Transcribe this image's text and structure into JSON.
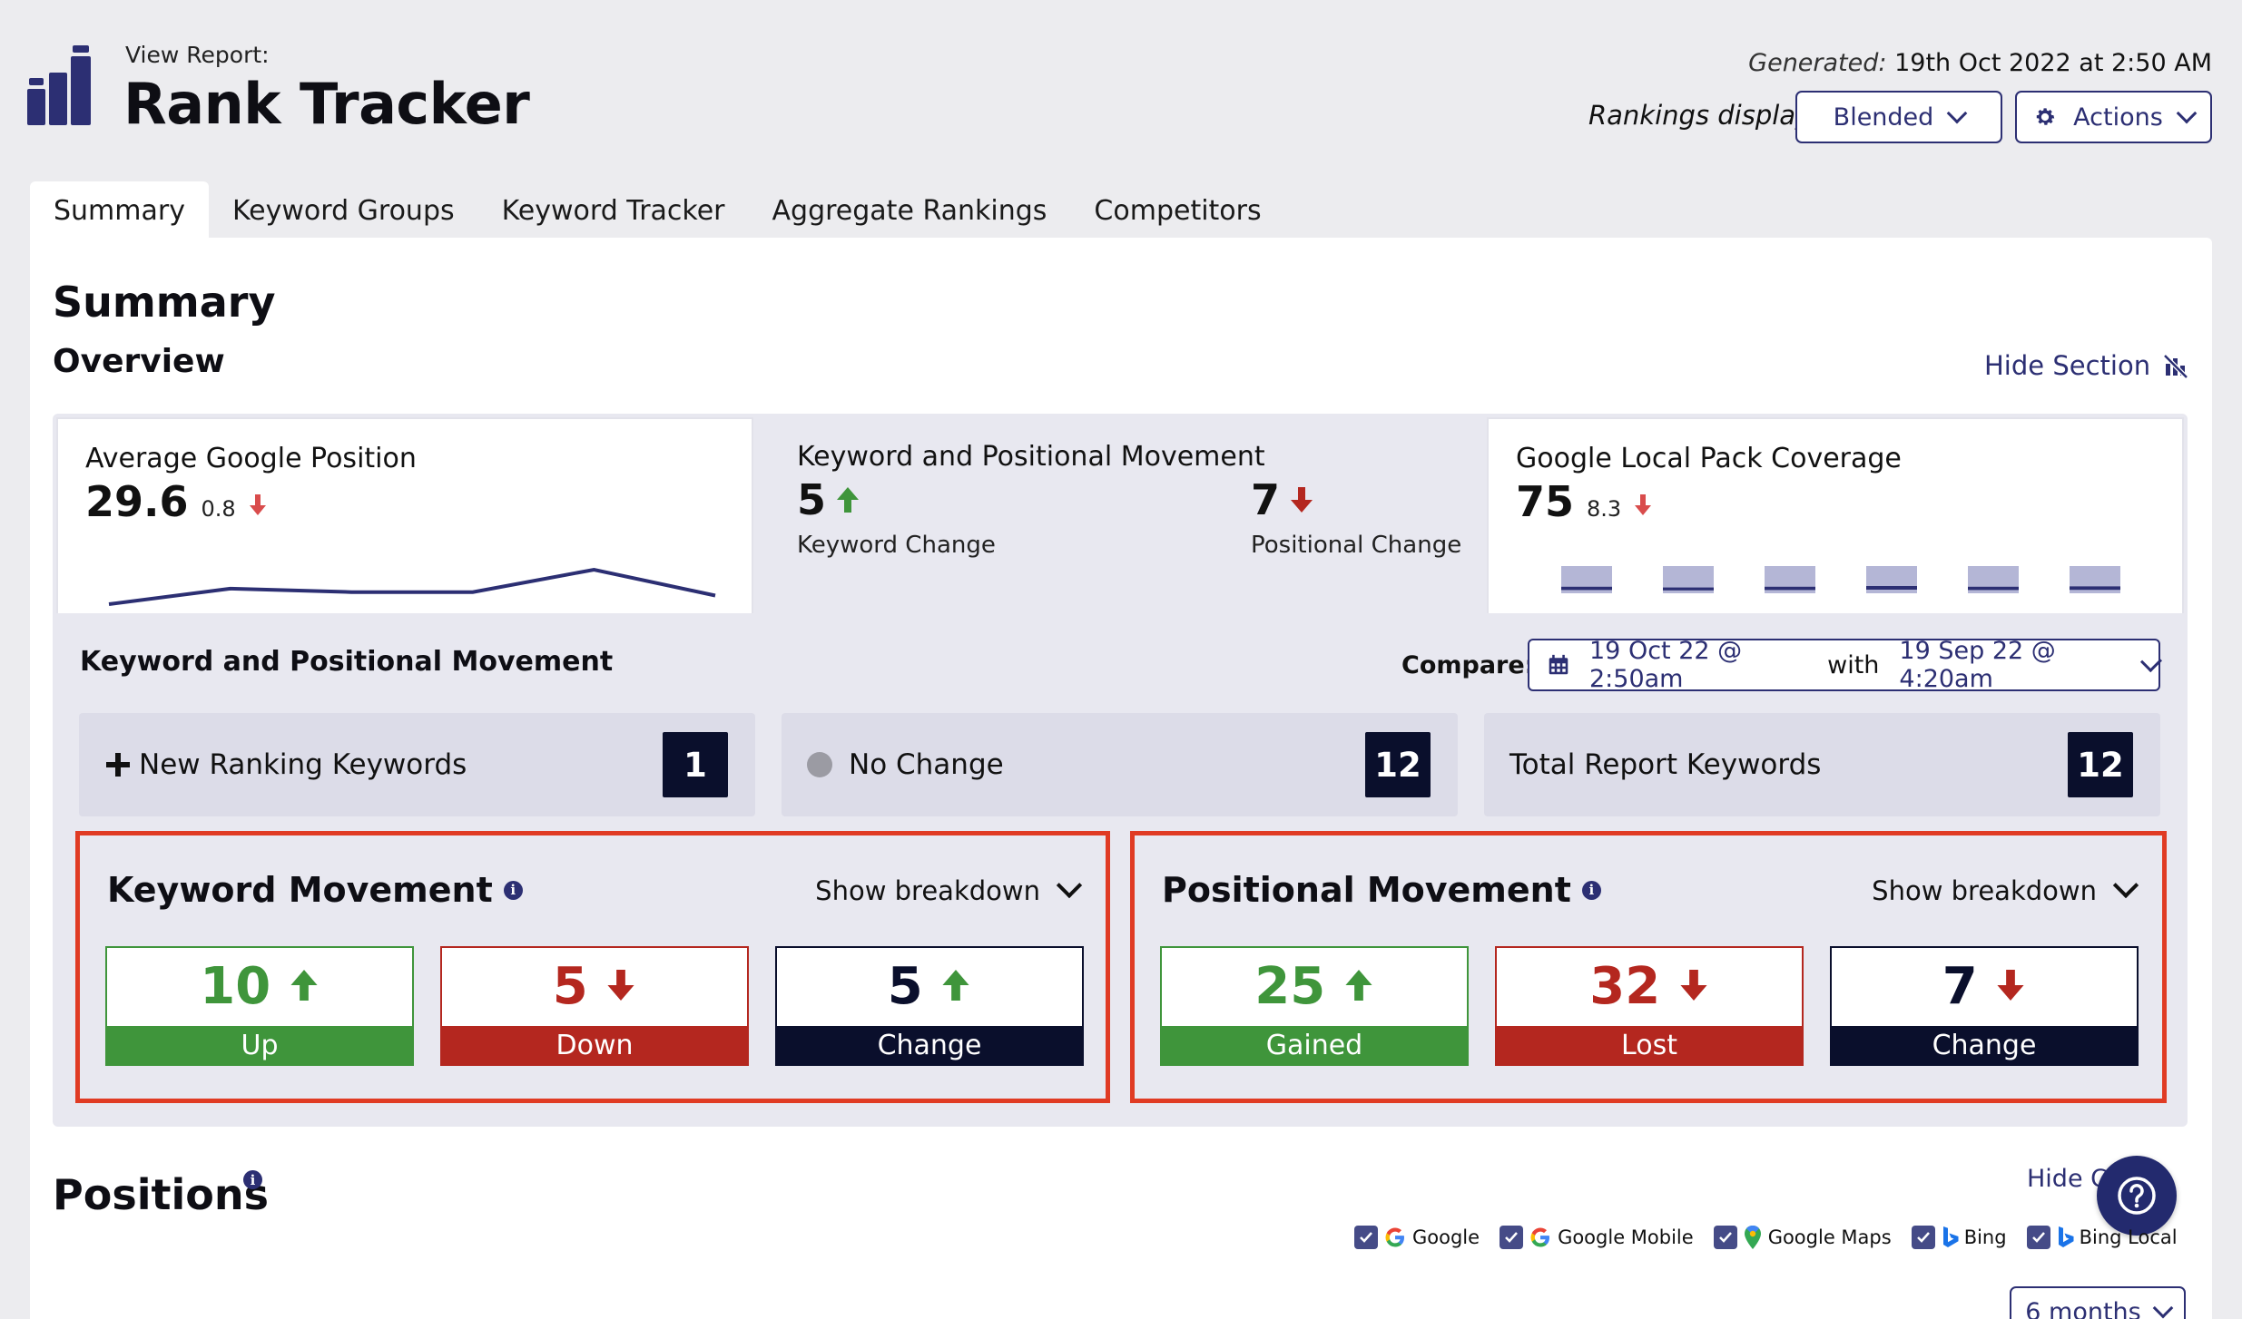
{
  "header": {
    "view_label": "View Report:",
    "title": "Rank Tracker",
    "generated_label": "Generated:",
    "generated_value": "19th Oct 2022 at 2:50 AM",
    "rankings_display_label": "Rankings display:",
    "rankings_display_value": "Blended",
    "actions_label": "Actions"
  },
  "tabs": [
    {
      "label": "Summary",
      "active": true
    },
    {
      "label": "Keyword Groups",
      "active": false
    },
    {
      "label": "Keyword Tracker",
      "active": false
    },
    {
      "label": "Aggregate Rankings",
      "active": false
    },
    {
      "label": "Competitors",
      "active": false
    }
  ],
  "summary": {
    "title": "Summary",
    "overview_title": "Overview",
    "hide_section": "Hide Section"
  },
  "overview_cards": {
    "avg_position": {
      "title": "Average Google Position",
      "value": "29.6",
      "change": "0.8",
      "trend": [
        3,
        7.5,
        6.5,
        6.5,
        13,
        5.5
      ]
    },
    "kpm": {
      "title": "Keyword and Positional Movement",
      "keyword_change_value": "5",
      "keyword_change_label": "Keyword Change",
      "positional_change_value": "7",
      "positional_change_label": "Positional Change"
    },
    "local_pack": {
      "title": "Google Local Pack Coverage",
      "value": "75",
      "change": "8.3",
      "bars": [
        0.8,
        0.6,
        0.8,
        1.0,
        0.8,
        0.9
      ]
    }
  },
  "movement": {
    "title": "Keyword and Positional Movement",
    "compare_label": "Compare:",
    "compare_from": "19 Oct 22 @ 2:50am",
    "compare_with": "with",
    "compare_to": "19 Sep 22 @ 4:20am",
    "stats": {
      "new_label": "New Ranking Keywords",
      "new_value": "1",
      "nochange_label": "No Change",
      "nochange_value": "12",
      "total_label": "Total Report Keywords",
      "total_value": "12"
    },
    "keyword_movement": {
      "title": "Keyword Movement",
      "breakdown": "Show breakdown",
      "up_value": "10",
      "up_label": "Up",
      "down_value": "5",
      "down_label": "Down",
      "change_value": "5",
      "change_label": "Change"
    },
    "positional_movement": {
      "title": "Positional Movement",
      "breakdown": "Show breakdown",
      "gained_value": "25",
      "gained_label": "Gained",
      "lost_value": "32",
      "lost_label": "Lost",
      "change_value": "7",
      "change_label": "Change"
    }
  },
  "positions": {
    "title": "Positions",
    "hide_chart": "Hide Ch",
    "engines": [
      "Google",
      "Google Mobile",
      "Google Maps",
      "Bing",
      "Bing Local"
    ],
    "range": "6 months"
  },
  "colors": {
    "navy": "#2c2f73",
    "green": "#3f953b",
    "red": "#b4271f",
    "dark": "#0a0f2c",
    "highlight": "#e03b24"
  }
}
